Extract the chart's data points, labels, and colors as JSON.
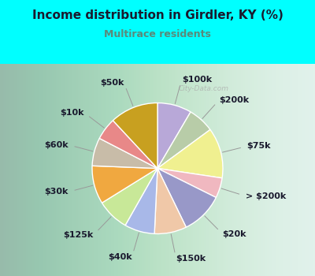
{
  "title": "Income distribution in Girdler, KY (%)",
  "subtitle": "Multirace residents",
  "title_color": "#1a1a2e",
  "subtitle_color": "#5a8a7a",
  "background_color": "#00ffff",
  "labels": [
    "$100k",
    "$200k",
    "$75k",
    "> $200k",
    "$20k",
    "$150k",
    "$40k",
    "$125k",
    "$30k",
    "$60k",
    "$10k",
    "$50k"
  ],
  "values": [
    8.5,
    6.5,
    12.5,
    5.0,
    10.5,
    8.0,
    7.5,
    8.0,
    9.5,
    7.0,
    5.5,
    12.0
  ],
  "colors": [
    "#b8a8d8",
    "#b8cca8",
    "#f0f090",
    "#f0b8c0",
    "#9898c8",
    "#f0c8a8",
    "#a8b8e8",
    "#c8e898",
    "#f0a840",
    "#c8bca8",
    "#e88888",
    "#c8a020"
  ],
  "wedge_edge_color": "#ffffff",
  "label_fontsize": 8,
  "label_color": "#1a1a2e",
  "watermark": "City-Data.com"
}
